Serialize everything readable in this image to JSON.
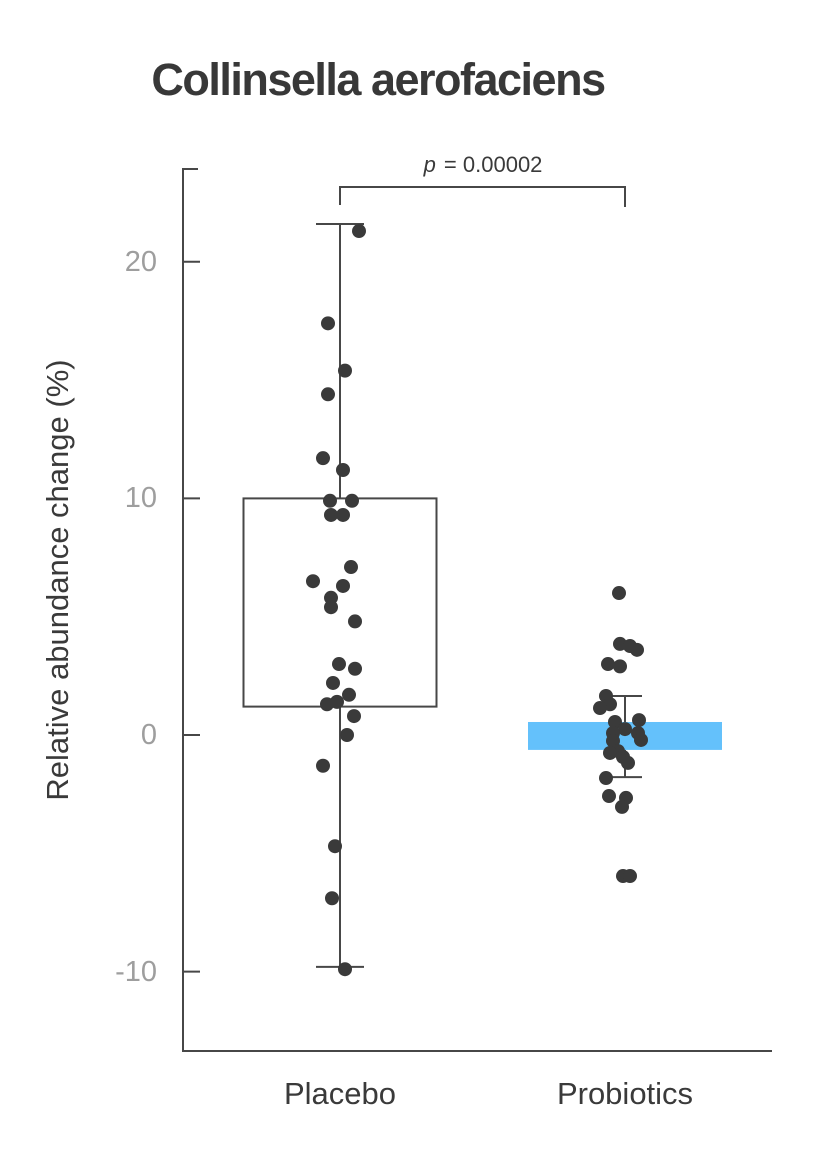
{
  "chart_data": {
    "type": "boxplot+strip",
    "title": "Collinsella aerofaciens",
    "ylabel": "Relative abundance change (%)",
    "categories": [
      "Placebo",
      "Probiotics"
    ],
    "yticks": [
      20,
      10,
      0,
      -10
    ],
    "ylim": [
      -13.4,
      24
    ],
    "grid": false,
    "legend": false,
    "point_color": "#3a3a3a",
    "axis_color": "#474747",
    "tick_label_color": "#9e9e9e",
    "significance": {
      "symbol": "p",
      "rest": " = 0.00002",
      "text": "p = 0.00002",
      "between": [
        "Placebo",
        "Probiotics"
      ]
    },
    "series": [
      {
        "name": "Placebo",
        "style": "box+jitter",
        "box": {
          "q1": 1.2,
          "q3": 10.0,
          "whisker_low": -9.8,
          "whisker_high": 21.6,
          "fill": "none",
          "stroke": "#474747"
        },
        "points": [
          21.3,
          17.4,
          15.4,
          14.4,
          11.7,
          11.2,
          9.9,
          9.9,
          9.3,
          9.3,
          7.1,
          6.5,
          6.3,
          5.8,
          5.4,
          4.8,
          3.0,
          2.8,
          2.2,
          1.7,
          1.4,
          1.3,
          0.8,
          0.0,
          -1.3,
          -4.7,
          -6.9,
          -9.9
        ],
        "jitter": [
          19,
          -12,
          5,
          -12,
          -17,
          3,
          -10,
          12,
          -9,
          3,
          11,
          -27,
          3,
          -9,
          -9,
          15,
          -1,
          15,
          -7,
          9,
          -3,
          -13,
          14,
          7,
          -17,
          -5,
          -8,
          5
        ]
      },
      {
        "name": "Probiotics",
        "style": "crossbar+errorbar+jitter",
        "crossbar": {
          "low": -0.63,
          "high": 0.55,
          "fill": "#64c1fb"
        },
        "errorbar": {
          "low": -1.78,
          "high": 1.65
        },
        "points": [
          6.0,
          3.85,
          3.76,
          3.6,
          3.0,
          2.9,
          1.65,
          1.3,
          1.14,
          0.63,
          0.55,
          0.25,
          0.08,
          0.08,
          -0.21,
          -0.25,
          -0.68,
          -0.76,
          -0.93,
          -1.18,
          -1.82,
          -2.58,
          -2.66,
          -3.04,
          -5.96,
          -5.96
        ],
        "jitter": [
          -6,
          -5,
          5,
          12,
          -17,
          -5,
          -19,
          -15,
          -25,
          14,
          -10,
          0,
          -12,
          13,
          16,
          -12,
          -7,
          -15,
          -2,
          3,
          -19,
          -16,
          1,
          -3,
          -2,
          5
        ]
      }
    ]
  }
}
